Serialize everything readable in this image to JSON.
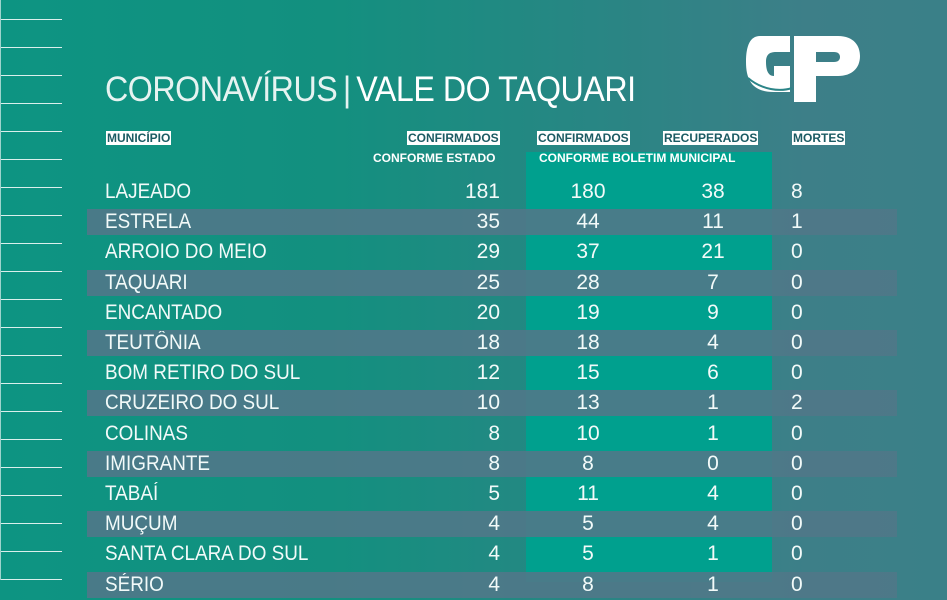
{
  "title": {
    "left": "CORONAVÍRUS",
    "separator": "|",
    "right": "VALE DO TAQUARI"
  },
  "logo": {
    "text": "GP"
  },
  "colors": {
    "highlight_column": "#00a08e",
    "band": "#50788a",
    "header_tag_text": "#1b5b63"
  },
  "headers": {
    "municipio": "MUNICÍPIO",
    "confirmados_estado": "CONFIRMADOS",
    "confirmados_estado_sub": "CONFORME ESTADO",
    "confirmados_boletim": "CONFIRMADOS",
    "recuperados": "RECUPERADOS",
    "boletim_sub": "CONFORME BOLETIM MUNICIPAL",
    "mortes": "MORTES"
  },
  "rows": [
    {
      "name": "LAJEADO",
      "estado": "181",
      "boletim": "180",
      "recuperados": "38",
      "mortes": "8"
    },
    {
      "name": "ESTRELA",
      "estado": "35",
      "boletim": "44",
      "recuperados": "11",
      "mortes": "1"
    },
    {
      "name": "ARROIO DO MEIO",
      "estado": "29",
      "boletim": "37",
      "recuperados": "21",
      "mortes": "0"
    },
    {
      "name": "TAQUARI",
      "estado": "25",
      "boletim": "28",
      "recuperados": "7",
      "mortes": "0"
    },
    {
      "name": "ENCANTADO",
      "estado": "20",
      "boletim": "19",
      "recuperados": "9",
      "mortes": "0"
    },
    {
      "name": "TEUTÔNIA",
      "estado": "18",
      "boletim": "18",
      "recuperados": "4",
      "mortes": "0"
    },
    {
      "name": "BOM RETIRO DO SUL",
      "estado": "12",
      "boletim": "15",
      "recuperados": "6",
      "mortes": "0"
    },
    {
      "name": "CRUZEIRO DO SUL",
      "estado": "10",
      "boletim": "13",
      "recuperados": "1",
      "mortes": "2"
    },
    {
      "name": "COLINAS",
      "estado": "8",
      "boletim": "10",
      "recuperados": "1",
      "mortes": "0"
    },
    {
      "name": "IMIGRANTE",
      "estado": "8",
      "boletim": "8",
      "recuperados": "0",
      "mortes": "0"
    },
    {
      "name": "TABAÍ",
      "estado": "5",
      "boletim": "11",
      "recuperados": "4",
      "mortes": "0"
    },
    {
      "name": "MUÇUM",
      "estado": "4",
      "boletim": "5",
      "recuperados": "4",
      "mortes": "0"
    },
    {
      "name": "SANTA CLARA DO SUL",
      "estado": "4",
      "boletim": "5",
      "recuperados": "1",
      "mortes": "0"
    },
    {
      "name": "SÉRIO",
      "estado": "4",
      "boletim": "8",
      "recuperados": "1",
      "mortes": "0"
    }
  ]
}
